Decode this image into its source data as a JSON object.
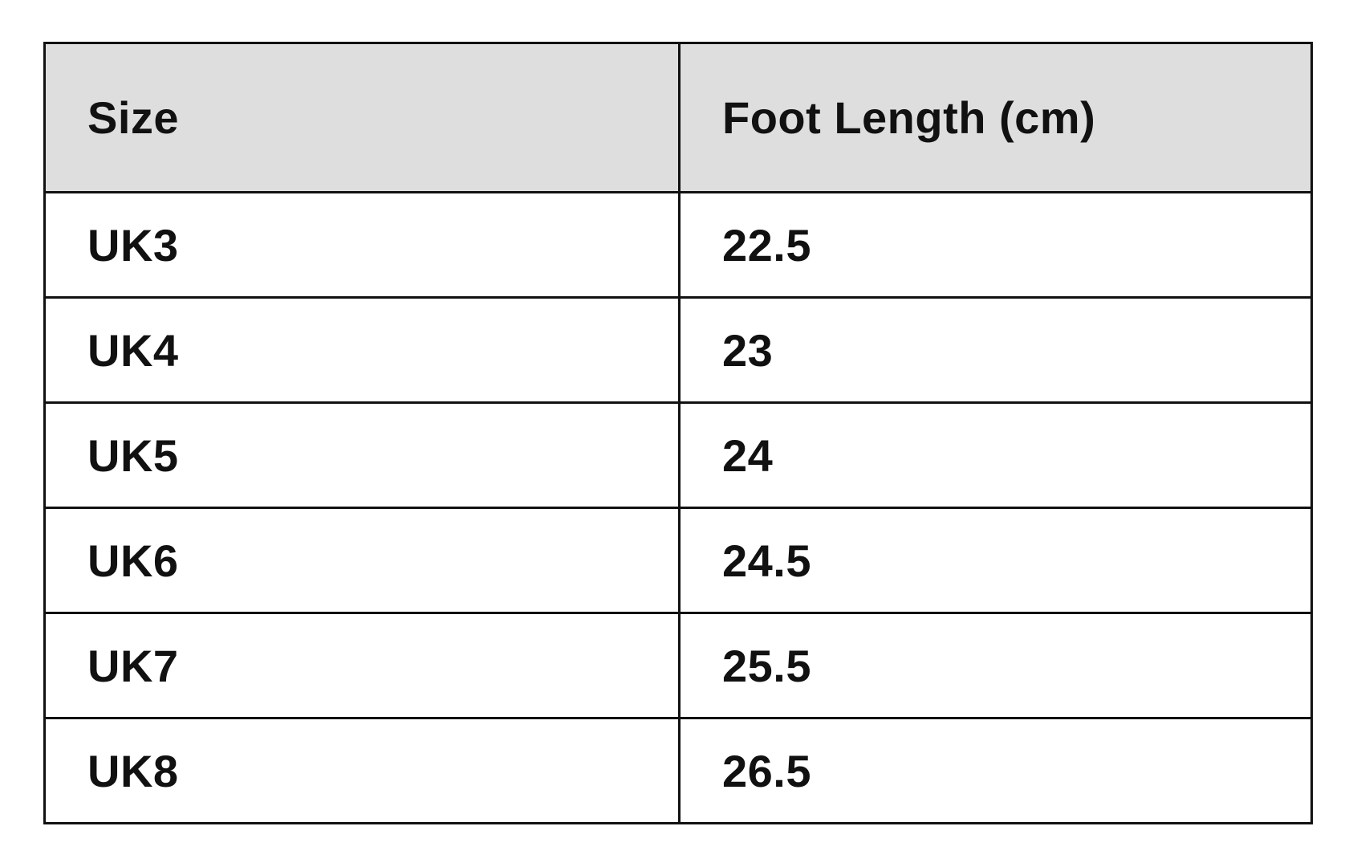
{
  "table": {
    "headers": [
      "Size",
      "Foot Length (cm)"
    ],
    "rows": [
      [
        "UK3",
        "22.5"
      ],
      [
        "UK4",
        "23"
      ],
      [
        "UK5",
        "24"
      ],
      [
        "UK6",
        "24.5"
      ],
      [
        "UK7",
        "25.5"
      ],
      [
        "UK8",
        "26.5"
      ]
    ],
    "header_bg": "#dedede"
  }
}
